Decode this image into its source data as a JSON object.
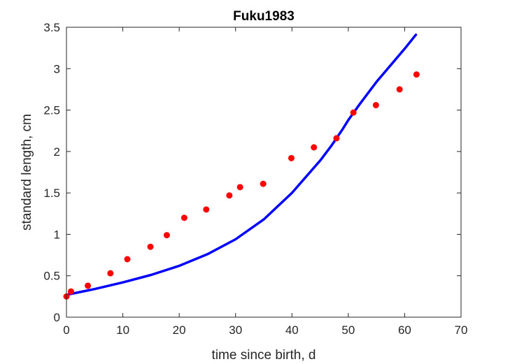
{
  "chart_data": {
    "type": "scatter",
    "title": "Fuku1983",
    "xlabel": "time since birth, d",
    "ylabel": "standard length, cm",
    "xlim": [
      0,
      70
    ],
    "ylim": [
      0,
      3.5
    ],
    "xticks": [
      0,
      10,
      20,
      30,
      40,
      50,
      60,
      70
    ],
    "yticks": [
      0,
      0.5,
      1,
      1.5,
      2,
      2.5,
      3,
      3.5
    ],
    "xtick_labels": [
      "0",
      "10",
      "20",
      "30",
      "40",
      "50",
      "60",
      "70"
    ],
    "ytick_labels": [
      "0",
      "0.5",
      "1",
      "1.5",
      "2",
      "2.5",
      "3",
      "3.5"
    ],
    "grid": false,
    "colors": {
      "points": "#ff0000",
      "curve": "#0000ff",
      "axes": "#262626"
    },
    "series": [
      {
        "type": "scatter",
        "x": [
          0,
          0.8,
          3.8,
          7.8,
          10.8,
          14.9,
          17.8,
          20.9,
          24.8,
          28.9,
          30.8,
          34.9,
          39.9,
          43.9,
          47.9,
          50.9,
          54.9,
          59.1,
          62.1
        ],
        "y": [
          0.25,
          0.31,
          0.38,
          0.53,
          0.7,
          0.85,
          0.99,
          1.2,
          1.3,
          1.47,
          1.57,
          1.61,
          1.92,
          2.05,
          2.16,
          2.47,
          2.56,
          2.75,
          2.93
        ]
      },
      {
        "type": "line",
        "x": [
          0,
          5,
          10,
          15,
          20,
          25,
          30,
          35,
          40,
          45,
          47,
          49,
          50,
          52,
          55,
          58,
          60,
          62
        ],
        "y": [
          0.27,
          0.34,
          0.42,
          0.51,
          0.62,
          0.76,
          0.94,
          1.18,
          1.5,
          1.89,
          2.07,
          2.27,
          2.38,
          2.57,
          2.84,
          3.08,
          3.24,
          3.41
        ]
      }
    ]
  }
}
